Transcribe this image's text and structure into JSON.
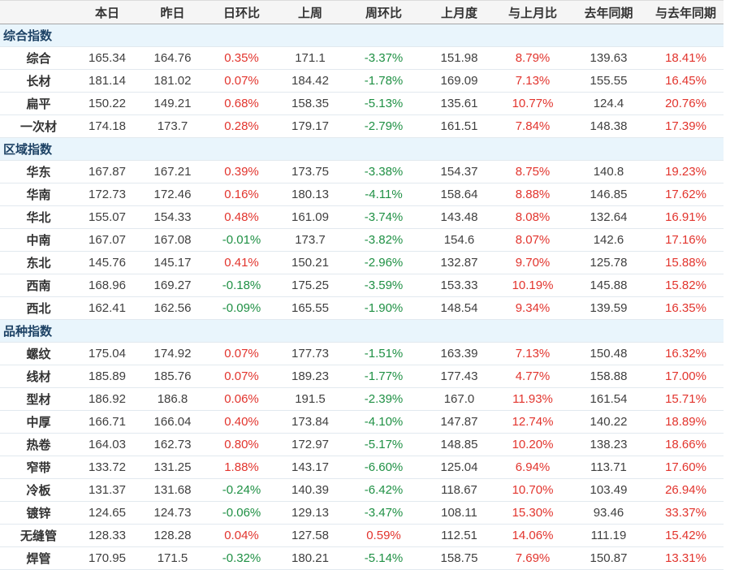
{
  "palette": {
    "text": "#3f3f3f",
    "header_text": "#333333",
    "header_bg": "#f5f5f5",
    "header_border": "#a6a6a6",
    "top_border": "#dcdcdc",
    "row_line": "#e2e9ef",
    "section_bg": "#e9f5fc",
    "section_text": "#1d4265",
    "label_text": "#333333",
    "positive_red": "#e2342d",
    "negative_green": "#1f9044"
  },
  "table": {
    "columns": [
      "",
      "本日",
      "昨日",
      "日环比",
      "上周",
      "周环比",
      "上月度",
      "与上月比",
      "去年同期",
      "与去年同期"
    ],
    "sections": [
      {
        "title": "综合指数",
        "rows": [
          {
            "label": "综合",
            "values": [
              "165.34",
              "164.76",
              "0.35%",
              "171.1",
              "-3.37%",
              "151.98",
              "8.79%",
              "139.63",
              "18.41%"
            ]
          },
          {
            "label": "长材",
            "values": [
              "181.14",
              "181.02",
              "0.07%",
              "184.42",
              "-1.78%",
              "169.09",
              "7.13%",
              "155.55",
              "16.45%"
            ]
          },
          {
            "label": "扁平",
            "values": [
              "150.22",
              "149.21",
              "0.68%",
              "158.35",
              "-5.13%",
              "135.61",
              "10.77%",
              "124.4",
              "20.76%"
            ]
          },
          {
            "label": "一次材",
            "values": [
              "174.18",
              "173.7",
              "0.28%",
              "179.17",
              "-2.79%",
              "161.51",
              "7.84%",
              "148.38",
              "17.39%"
            ]
          }
        ]
      },
      {
        "title": "区域指数",
        "rows": [
          {
            "label": "华东",
            "values": [
              "167.87",
              "167.21",
              "0.39%",
              "173.75",
              "-3.38%",
              "154.37",
              "8.75%",
              "140.8",
              "19.23%"
            ]
          },
          {
            "label": "华南",
            "values": [
              "172.73",
              "172.46",
              "0.16%",
              "180.13",
              "-4.11%",
              "158.64",
              "8.88%",
              "146.85",
              "17.62%"
            ]
          },
          {
            "label": "华北",
            "values": [
              "155.07",
              "154.33",
              "0.48%",
              "161.09",
              "-3.74%",
              "143.48",
              "8.08%",
              "132.64",
              "16.91%"
            ]
          },
          {
            "label": "中南",
            "values": [
              "167.07",
              "167.08",
              "-0.01%",
              "173.7",
              "-3.82%",
              "154.6",
              "8.07%",
              "142.6",
              "17.16%"
            ]
          },
          {
            "label": "东北",
            "values": [
              "145.76",
              "145.17",
              "0.41%",
              "150.21",
              "-2.96%",
              "132.87",
              "9.70%",
              "125.78",
              "15.88%"
            ]
          },
          {
            "label": "西南",
            "values": [
              "168.96",
              "169.27",
              "-0.18%",
              "175.25",
              "-3.59%",
              "153.33",
              "10.19%",
              "145.88",
              "15.82%"
            ]
          },
          {
            "label": "西北",
            "values": [
              "162.41",
              "162.56",
              "-0.09%",
              "165.55",
              "-1.90%",
              "148.54",
              "9.34%",
              "139.59",
              "16.35%"
            ]
          }
        ]
      },
      {
        "title": "品种指数",
        "rows": [
          {
            "label": "螺纹",
            "values": [
              "175.04",
              "174.92",
              "0.07%",
              "177.73",
              "-1.51%",
              "163.39",
              "7.13%",
              "150.48",
              "16.32%"
            ]
          },
          {
            "label": "线材",
            "values": [
              "185.89",
              "185.76",
              "0.07%",
              "189.23",
              "-1.77%",
              "177.43",
              "4.77%",
              "158.88",
              "17.00%"
            ]
          },
          {
            "label": "型材",
            "values": [
              "186.92",
              "186.8",
              "0.06%",
              "191.5",
              "-2.39%",
              "167.0",
              "11.93%",
              "161.54",
              "15.71%"
            ]
          },
          {
            "label": "中厚",
            "values": [
              "166.71",
              "166.04",
              "0.40%",
              "173.84",
              "-4.10%",
              "147.87",
              "12.74%",
              "140.22",
              "18.89%"
            ]
          },
          {
            "label": "热卷",
            "values": [
              "164.03",
              "162.73",
              "0.80%",
              "172.97",
              "-5.17%",
              "148.85",
              "10.20%",
              "138.23",
              "18.66%"
            ]
          },
          {
            "label": "窄带",
            "values": [
              "133.72",
              "131.25",
              "1.88%",
              "143.17",
              "-6.60%",
              "125.04",
              "6.94%",
              "113.71",
              "17.60%"
            ]
          },
          {
            "label": "冷板",
            "values": [
              "131.37",
              "131.68",
              "-0.24%",
              "140.39",
              "-6.42%",
              "118.67",
              "10.70%",
              "103.49",
              "26.94%"
            ]
          },
          {
            "label": "镀锌",
            "values": [
              "124.65",
              "124.73",
              "-0.06%",
              "129.13",
              "-3.47%",
              "108.11",
              "15.30%",
              "93.46",
              "33.37%"
            ]
          },
          {
            "label": "无缝管",
            "values": [
              "128.33",
              "128.28",
              "0.04%",
              "127.58",
              "0.59%",
              "112.51",
              "14.06%",
              "111.19",
              "15.42%"
            ]
          },
          {
            "label": "焊管",
            "values": [
              "170.95",
              "171.5",
              "-0.32%",
              "180.21",
              "-5.14%",
              "158.75",
              "7.69%",
              "150.87",
              "13.31%"
            ]
          }
        ]
      }
    ]
  }
}
